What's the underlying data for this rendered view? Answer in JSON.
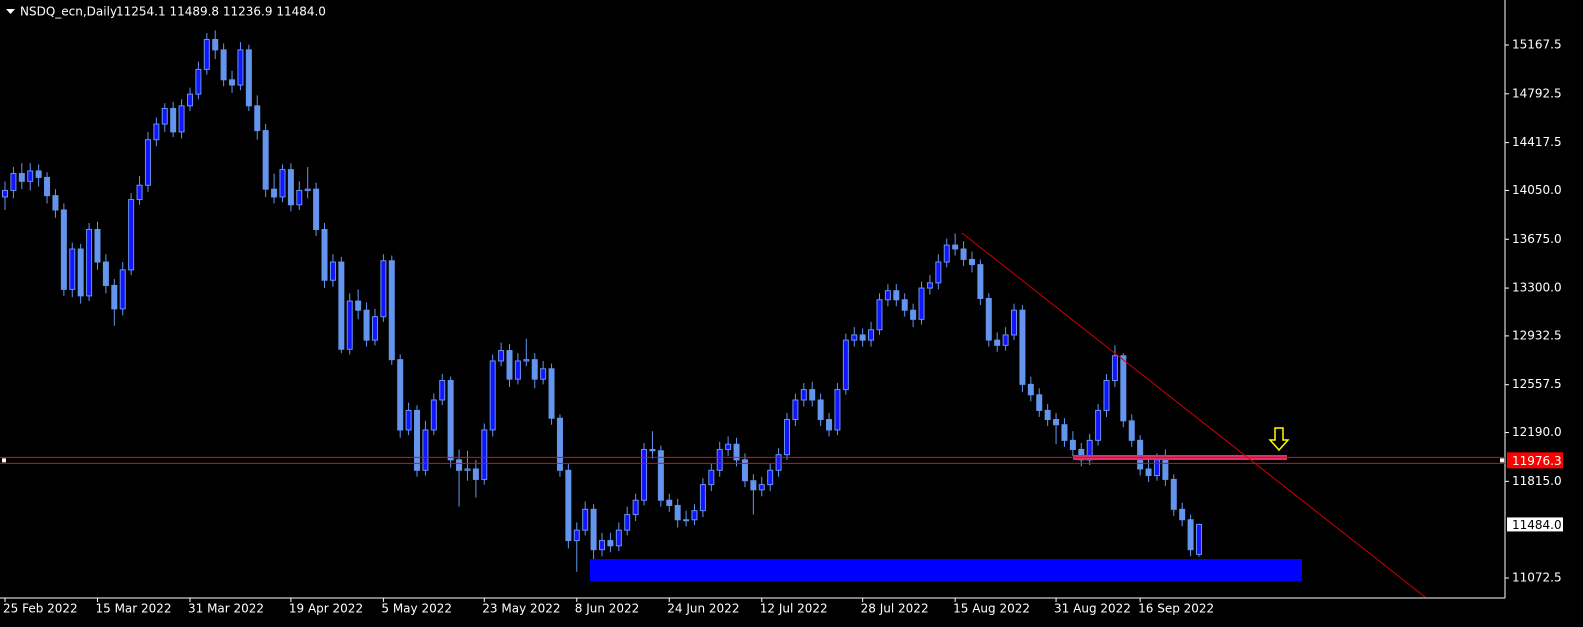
{
  "chart_data": {
    "type": "candlestick",
    "title": "NSDQ_ecn,Daily",
    "header_values": "11254.1 11489.8 11236.9 11484.0",
    "color": "#6495ed",
    "up_fill": "#1414ff",
    "down_fill": "#6495ed",
    "categories": [
      "25 Feb 2022",
      null,
      null,
      null,
      null,
      null,
      null,
      null,
      null,
      null,
      null,
      "15 Mar 2022",
      null,
      null,
      null,
      null,
      null,
      null,
      null,
      null,
      null,
      null,
      "31 Mar 2022",
      null,
      null,
      null,
      null,
      null,
      null,
      null,
      null,
      null,
      null,
      null,
      "19 Apr 2022",
      null,
      null,
      null,
      null,
      null,
      null,
      null,
      null,
      null,
      null,
      "5 May 2022",
      null,
      null,
      null,
      null,
      null,
      null,
      null,
      null,
      null,
      null,
      null,
      "23 May 2022",
      null,
      null,
      null,
      null,
      null,
      null,
      null,
      null,
      null,
      null,
      "8 Jun 2022",
      null,
      null,
      null,
      null,
      null,
      null,
      null,
      null,
      null,
      null,
      "24 Jun 2022",
      null,
      null,
      null,
      null,
      null,
      null,
      null,
      null,
      null,
      null,
      "12 Jul 2022",
      null,
      null,
      null,
      null,
      null,
      null,
      null,
      null,
      null,
      null,
      null,
      "28 Jul 2022",
      null,
      null,
      null,
      null,
      null,
      null,
      null,
      null,
      null,
      null,
      "15 Aug 2022",
      null,
      null,
      null,
      null,
      null,
      null,
      null,
      null,
      null,
      null,
      null,
      "31 Aug 2022",
      null,
      null,
      null,
      null,
      null,
      null,
      null,
      null,
      null,
      "16 Sep 2022",
      null,
      null,
      null,
      null,
      null,
      null,
      null
    ],
    "open": [
      14000,
      14050,
      14180,
      14120,
      14200,
      14150,
      14010,
      13900,
      13290,
      13600,
      13240,
      13750,
      13500,
      13320,
      13140,
      13440,
      13980,
      14090,
      14440,
      14560,
      14680,
      14500,
      14700,
      14790,
      14980,
      15210,
      15130,
      14900,
      14860,
      15130,
      14700,
      14510,
      14060,
      14000,
      14210,
      13940,
      14050,
      14060,
      13750,
      13360,
      13500,
      12830,
      13200,
      13130,
      12900,
      13080,
      13510,
      12750,
      12210,
      12360,
      11900,
      12210,
      12440,
      12590,
      11980,
      11900,
      11910,
      11830,
      12210,
      12740,
      12820,
      12600,
      12740,
      12750,
      12600,
      12680,
      12300,
      11900,
      11360,
      11440,
      11600,
      11290,
      11360,
      11320,
      11440,
      11560,
      11670,
      12060,
      12050,
      11670,
      11630,
      11520,
      11520,
      11590,
      11790,
      11900,
      12060,
      12100,
      11980,
      11820,
      11750,
      11790,
      11900,
      12020,
      12290,
      12440,
      12520,
      12440,
      12290,
      12210,
      12520,
      12900,
      12940,
      12900,
      12980,
      13210,
      13280,
      13210,
      13130,
      13060,
      13300,
      13340,
      13500,
      13630,
      13600,
      13520,
      13480,
      13220,
      12900,
      12860,
      12940,
      13130,
      12560,
      12480,
      12360,
      12290,
      12250,
      12130,
      12060,
      11980,
      12130,
      12360,
      12590,
      12780,
      12280,
      12130,
      11910,
      11860,
      11980,
      11830,
      11600,
      11520,
      11254.1
    ],
    "high": [
      14120,
      14230,
      14260,
      14260,
      14250,
      14190,
      14060,
      13950,
      13650,
      13640,
      13800,
      13810,
      13560,
      13370,
      13500,
      14030,
      14160,
      14500,
      14610,
      14720,
      14730,
      14750,
      14840,
      15040,
      15260,
      15280,
      15180,
      14970,
      15190,
      15170,
      14780,
      14560,
      14180,
      14250,
      14260,
      14120,
      14230,
      14110,
      13800,
      13560,
      13540,
      13260,
      13290,
      13190,
      13140,
      13560,
      13550,
      12790,
      12420,
      12400,
      12280,
      12490,
      12640,
      12620,
      12060,
      12050,
      11980,
      12260,
      12790,
      12880,
      12870,
      12800,
      12910,
      12800,
      12740,
      12720,
      12330,
      11950,
      11500,
      11660,
      11640,
      11420,
      11420,
      11500,
      11620,
      11720,
      12110,
      12200,
      12090,
      11720,
      11680,
      11590,
      11640,
      11840,
      11950,
      12120,
      12160,
      12150,
      12030,
      11870,
      11850,
      11950,
      12070,
      12340,
      12490,
      12570,
      12580,
      12490,
      12340,
      12570,
      12950,
      13000,
      12990,
      13040,
      13260,
      13330,
      13330,
      13260,
      13180,
      13350,
      13400,
      13560,
      13680,
      13720,
      13660,
      13580,
      13520,
      13260,
      12960,
      13000,
      13180,
      13170,
      12620,
      12530,
      12410,
      12340,
      12300,
      12200,
      12110,
      12180,
      12410,
      12640,
      12860,
      12800,
      12330,
      12170,
      12010,
      12030,
      12060,
      11870,
      11650,
      11560,
      11489.8
    ],
    "low": [
      13900,
      13990,
      14060,
      14050,
      14080,
      13950,
      13840,
      13240,
      13230,
      13180,
      13200,
      13440,
      13260,
      13010,
      13090,
      13400,
      13940,
      14040,
      14390,
      14500,
      14460,
      14450,
      14660,
      14750,
      14940,
      15060,
      14850,
      14800,
      14820,
      14660,
      14440,
      14000,
      13950,
      13960,
      13890,
      13900,
      13990,
      13700,
      13300,
      13310,
      12800,
      12790,
      13060,
      12850,
      12860,
      13040,
      12710,
      12150,
      12170,
      11850,
      11860,
      12170,
      12400,
      11920,
      11620,
      11820,
      11690,
      11790,
      12160,
      12700,
      12540,
      12560,
      12700,
      12530,
      12560,
      12250,
      11850,
      11300,
      11120,
      11400,
      11100,
      11240,
      11270,
      11280,
      11400,
      11510,
      11630,
      11990,
      11620,
      11580,
      11460,
      11470,
      11480,
      11540,
      11740,
      11850,
      12010,
      11930,
      11770,
      11560,
      11700,
      11740,
      11850,
      11980,
      12240,
      12390,
      12390,
      12240,
      12160,
      12170,
      12480,
      12850,
      12850,
      12850,
      12940,
      13160,
      13160,
      13080,
      13000,
      13020,
      13250,
      13290,
      13460,
      13550,
      13470,
      13420,
      13170,
      12850,
      12810,
      12820,
      12900,
      12500,
      12430,
      12310,
      12240,
      12100,
      12080,
      12010,
      11930,
      11940,
      12090,
      12310,
      12540,
      12230,
      12080,
      11860,
      11810,
      11820,
      11780,
      11550,
      11470,
      11240,
      11236.9
    ],
    "close": [
      14050,
      14180,
      14120,
      14200,
      14150,
      14010,
      13900,
      13290,
      13600,
      13240,
      13750,
      13500,
      13320,
      13140,
      13440,
      13980,
      14090,
      14440,
      14560,
      14680,
      14500,
      14700,
      14790,
      14980,
      15210,
      15130,
      14900,
      14860,
      15130,
      14700,
      14510,
      14060,
      14000,
      14210,
      13940,
      14050,
      14060,
      13750,
      13360,
      13500,
      12830,
      13200,
      13130,
      12900,
      13080,
      13510,
      12750,
      12210,
      12360,
      11900,
      12210,
      12440,
      12590,
      11980,
      11900,
      11910,
      11830,
      12210,
      12740,
      12820,
      12600,
      12740,
      12750,
      12600,
      12680,
      12300,
      11900,
      11360,
      11440,
      11600,
      11290,
      11360,
      11320,
      11440,
      11560,
      11670,
      12060,
      12050,
      11670,
      11630,
      11520,
      11520,
      11590,
      11790,
      11900,
      12060,
      12100,
      11980,
      11820,
      11750,
      11790,
      11900,
      12020,
      12290,
      12440,
      12520,
      12440,
      12290,
      12210,
      12520,
      12900,
      12940,
      12900,
      12980,
      13210,
      13280,
      13210,
      13130,
      13060,
      13300,
      13340,
      13500,
      13630,
      13600,
      13520,
      13480,
      13220,
      12900,
      12860,
      12940,
      13130,
      12560,
      12480,
      12360,
      12290,
      12250,
      12130,
      12060,
      11980,
      12130,
      12360,
      12590,
      12780,
      12280,
      12130,
      11910,
      11860,
      11980,
      11830,
      11600,
      11520,
      11290,
      11484
    ],
    "ylim": [
      10918.8,
      15513.2
    ],
    "yticks": [
      15167.5,
      14792.5,
      14417.5,
      {
        "value": 14050,
        "label": "14050.0"
      },
      {
        "value": 13675,
        "label": "13675.0"
      },
      {
        "value": 13300,
        "label": "13300.0"
      },
      12932.5,
      12557.5,
      {
        "value": 12190,
        "label": "12190.0"
      },
      {
        "value": 11815,
        "label": "11815.0"
      },
      11072.5
    ],
    "level": 11976.3,
    "level_color": "#ff0000",
    "current_price": {
      "value": 11484,
      "label": "11484.0"
    },
    "grid": false
  }
}
